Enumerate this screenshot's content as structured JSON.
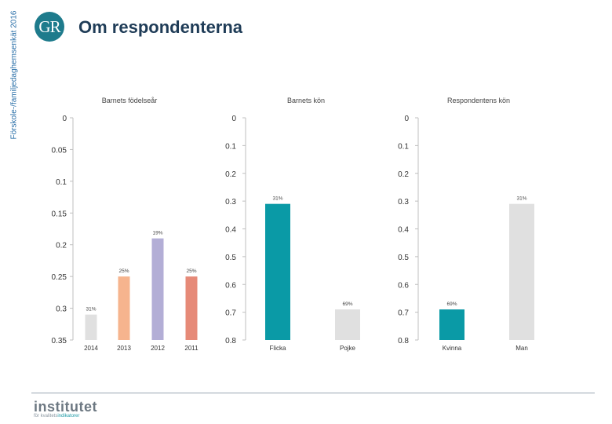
{
  "side_label": "Förskole-/familjedaghemsenkät 2016",
  "logo_text": "GR",
  "page_title": "Om respondenterna",
  "footer": {
    "brand": "institutet",
    "tagline_pre": "för kvalitets",
    "tagline_hl": "indikatorer"
  },
  "colors": {
    "title": "#1f3c57",
    "teal": "#0a9aa6",
    "grey": "#e0e0e0",
    "peach": "#f6b48e",
    "lavender": "#b3aed6",
    "salmon": "#e68a78"
  },
  "chart_data": [
    {
      "type": "bar",
      "title": "Barnets födelseår",
      "categories": [
        "2014",
        "2013",
        "2012",
        "2011"
      ],
      "values": [
        0.31,
        0.25,
        0.19,
        0.25
      ],
      "labels": [
        "31%",
        "25%",
        "19%",
        "25%"
      ],
      "colors": [
        "#e0e0e0",
        "#f6b48e",
        "#b3aed6",
        "#e68a78"
      ],
      "yticks": [
        "0",
        "0.05",
        "0.1",
        "0.15",
        "0.2",
        "0.25",
        "0.3",
        "0.35"
      ],
      "ylim": [
        0,
        0.35
      ]
    },
    {
      "type": "bar",
      "title": "Barnets kön",
      "categories": [
        "Flicka",
        "Pojke"
      ],
      "values": [
        0.31,
        0.69
      ],
      "labels": [
        "31%",
        "69%"
      ],
      "colors": [
        "#0a9aa6",
        "#e0e0e0"
      ],
      "yticks": [
        "0",
        "0.1",
        "0.2",
        "0.3",
        "0.4",
        "0.5",
        "0.6",
        "0.7",
        "0.8"
      ],
      "ylim": [
        0,
        0.8
      ]
    },
    {
      "type": "bar",
      "title": "Respondentens kön",
      "categories": [
        "Kvinna",
        "Man"
      ],
      "values": [
        0.69,
        0.31
      ],
      "labels": [
        "69%",
        "31%"
      ],
      "colors": [
        "#0a9aa6",
        "#e0e0e0"
      ],
      "yticks": [
        "0",
        "0.1",
        "0.2",
        "0.3",
        "0.4",
        "0.5",
        "0.6",
        "0.7",
        "0.8"
      ],
      "ylim": [
        0,
        0.8
      ]
    }
  ]
}
